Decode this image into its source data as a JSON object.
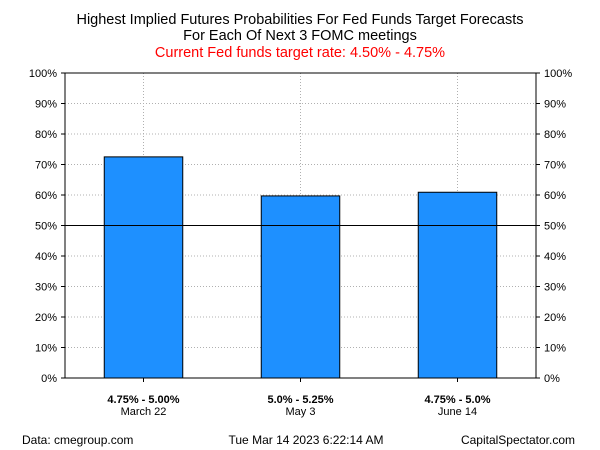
{
  "chart_data": {
    "type": "bar",
    "title_lines": [
      "Highest Implied Futures Probabilities For Fed Funds Target Forecasts",
      "For Each Of Next 3 FOMC meetings"
    ],
    "subtitle": "Current Fed funds target rate: 4.50% - 4.75%",
    "subtitle_color": "#ff0000",
    "bar_color": "#1e90ff",
    "categories": [
      {
        "label": "4.75% - 5.00%",
        "sublabel": "March 22"
      },
      {
        "label": "5.0% - 5.25%",
        "sublabel": "May 3"
      },
      {
        "label": "4.75% - 5.0%",
        "sublabel": "June 14"
      }
    ],
    "values": [
      72.5,
      59.7,
      60.9
    ],
    "ylim": [
      0,
      100
    ],
    "yticks": [
      0,
      10,
      20,
      30,
      40,
      50,
      60,
      70,
      80,
      90,
      100
    ],
    "ytick_suffix": "%",
    "reference_line": 50,
    "grid": "dotted",
    "axis_labels_both_sides": true
  },
  "footer": {
    "left": "Data: cmegroup.com",
    "center": "Tue Mar 14 2023 6:22:14 AM",
    "right": "CapitalSpectator.com"
  }
}
